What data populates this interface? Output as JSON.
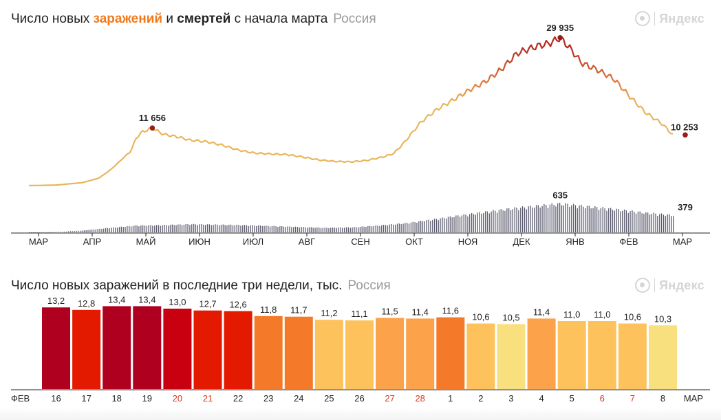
{
  "colors": {
    "infection_low": "#e8b65a",
    "infection_high": "#b5281f",
    "peak_dot": "#9b1b1b",
    "deaths_bar": "#5a5a6e",
    "axis": "#222222",
    "weekend_label": "#d9381e",
    "bar_scale": [
      "#b00020",
      "#e31a00",
      "#f47a2a",
      "#fba24a",
      "#fdc25c",
      "#f9e07f"
    ]
  },
  "top": {
    "title_part1": "Число новых ",
    "title_infections": "заражений",
    "title_part2": " и ",
    "title_deaths": "смертей",
    "title_part3": " с начала марта",
    "region": "Россия",
    "logo": "Яндекс",
    "chart_data": {
      "type": "line",
      "months": [
        "МАР",
        "АПР",
        "МАЙ",
        "ИЮН",
        "ИЮЛ",
        "АВГ",
        "СЕН",
        "ОКТ",
        "НОЯ",
        "ДЕК",
        "ЯНВ",
        "ФЕВ",
        "МАР"
      ],
      "infections_series": {
        "x_month_index": [
          0,
          0.5,
          1,
          1.3,
          1.5,
          1.7,
          1.9,
          2.0,
          2.1,
          2.3,
          2.5,
          2.8,
          3.0,
          3.3,
          3.6,
          3.9,
          4.2,
          4.5,
          4.8,
          5.1,
          5.4,
          5.7,
          6.0,
          6.3,
          6.6,
          6.8,
          7.0,
          7.3,
          7.6,
          7.9,
          8.2,
          8.5,
          8.8,
          9.1,
          9.3,
          9.5,
          9.7,
          9.9,
          10.1,
          10.3,
          10.6,
          10.9,
          11.2,
          11.5,
          11.8,
          12.0
        ],
        "values": [
          0,
          100,
          600,
          1500,
          3000,
          5000,
          7000,
          9600,
          10800,
          11656,
          10400,
          9800,
          9200,
          8900,
          8200,
          7200,
          6600,
          6400,
          6300,
          5800,
          5200,
          4900,
          4800,
          5100,
          5800,
          6500,
          8800,
          12800,
          15400,
          17300,
          19300,
          21000,
          23500,
          26800,
          27600,
          28300,
          28800,
          29935,
          27600,
          24800,
          23400,
          21600,
          18000,
          14700,
          12500,
          10253
        ]
      },
      "deaths_series": {
        "x_month_index": [
          0,
          0.5,
          1,
          1.5,
          2,
          2.5,
          3,
          3.5,
          4,
          4.5,
          5,
          5.5,
          6,
          6.5,
          7,
          7.5,
          8,
          8.5,
          9,
          9.5,
          9.9,
          10.5,
          11,
          11.5,
          12
        ],
        "values": [
          0,
          5,
          40,
          100,
          150,
          160,
          180,
          170,
          160,
          140,
          120,
          100,
          110,
          150,
          200,
          280,
          370,
          450,
          530,
          590,
          635,
          560,
          500,
          430,
          379
        ]
      },
      "annotations": [
        {
          "label": "11 656",
          "series": "infections",
          "x_month_index": 2.3,
          "value": 11656
        },
        {
          "label": "29 935",
          "series": "infections",
          "x_month_index": 9.9,
          "value": 29935
        },
        {
          "label": "10 253",
          "series": "infections",
          "x_month_index": 12.0,
          "value": 10253
        },
        {
          "label": "635",
          "series": "deaths",
          "x_month_index": 9.9,
          "value": 635
        },
        {
          "label": "379",
          "series": "deaths",
          "x_month_index": 12.0,
          "value": 379
        }
      ],
      "ylim_infections": [
        0,
        32000
      ],
      "ylim_deaths": [
        0,
        700
      ]
    }
  },
  "bottom": {
    "title": "Число новых заражений в последние три недели, тыс.",
    "region": "Россия",
    "logo": "Яндекс",
    "chart_data": {
      "type": "bar",
      "left_month": "ФЕВ",
      "right_month": "МАР",
      "categories": [
        "16",
        "17",
        "18",
        "19",
        "20",
        "21",
        "22",
        "23",
        "24",
        "25",
        "26",
        "27",
        "28",
        "1",
        "2",
        "3",
        "4",
        "5",
        "6",
        "7",
        "8"
      ],
      "values": [
        13.2,
        12.8,
        13.4,
        13.4,
        13.0,
        12.7,
        12.6,
        11.8,
        11.7,
        11.2,
        11.1,
        11.5,
        11.4,
        11.6,
        10.6,
        10.5,
        11.4,
        11.0,
        11.0,
        10.6,
        10.3
      ],
      "value_labels": [
        "13,2",
        "12,8",
        "13,4",
        "13,4",
        "13,0",
        "12,7",
        "12,6",
        "11,8",
        "11,7",
        "11,2",
        "11,1",
        "11,5",
        "11,4",
        "11,6",
        "10,6",
        "10,5",
        "11,4",
        "11,0",
        "11,0",
        "10,6",
        "10,3"
      ],
      "weekend": [
        false,
        false,
        false,
        false,
        true,
        true,
        false,
        false,
        false,
        false,
        false,
        true,
        true,
        false,
        false,
        false,
        false,
        false,
        true,
        true,
        false
      ],
      "ylim": [
        0,
        14
      ]
    }
  }
}
